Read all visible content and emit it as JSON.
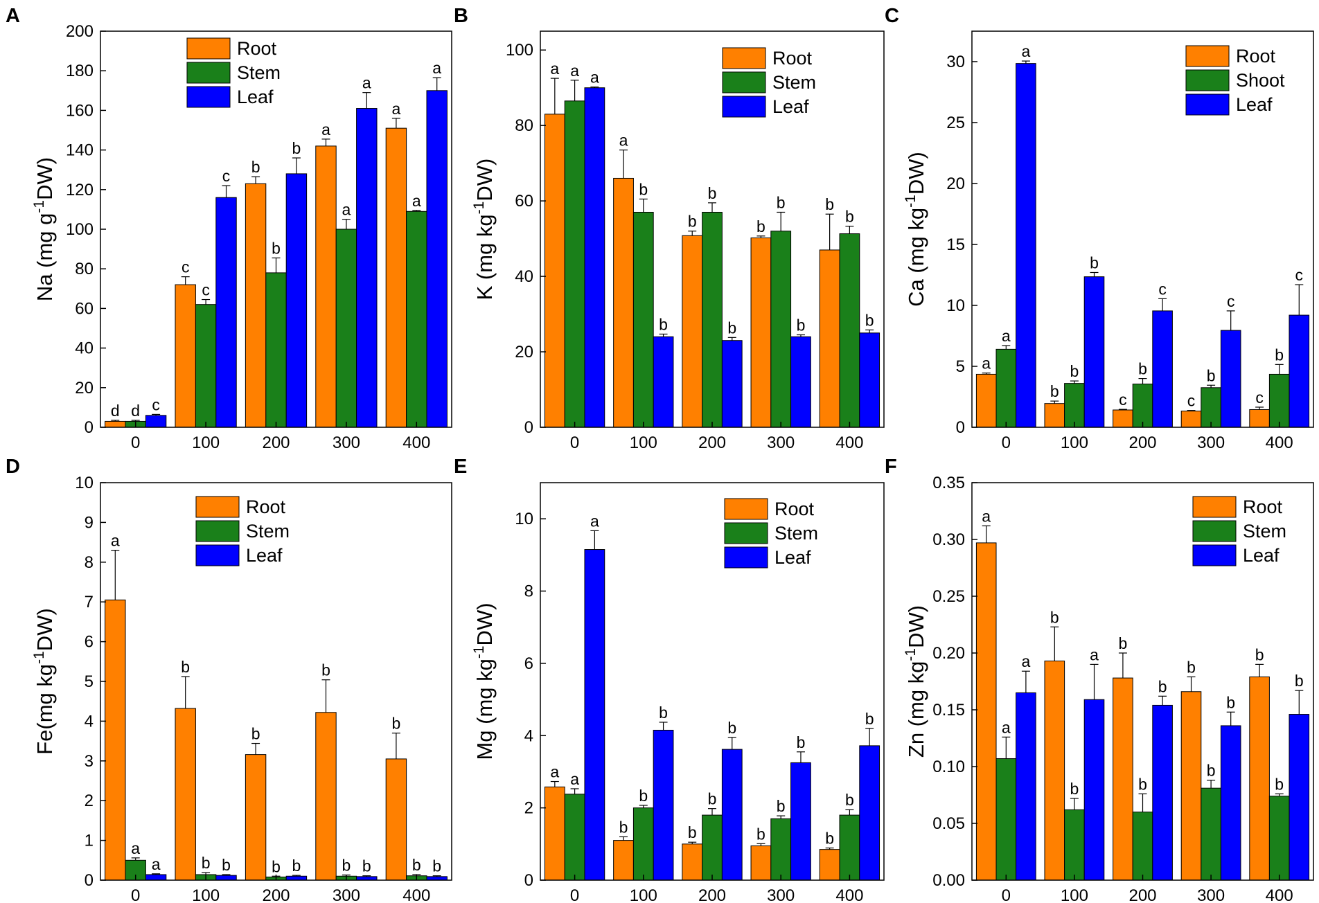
{
  "colors": {
    "Root": "#FF8000",
    "Stem": "#1A801A",
    "Shoot": "#1A801A",
    "Leaf": "#0000FF"
  },
  "chart_data": [
    {
      "type": "bar",
      "panel": "A",
      "categories": [
        "0",
        "100",
        "200",
        "300",
        "400"
      ],
      "ylabel": "Na (mg g",
      "ylabel_sup": "-1",
      "ylabel_tail": "DW)",
      "ylim": [
        0,
        200
      ],
      "yticks": [
        "0",
        "20",
        "40",
        "60",
        "80",
        "100",
        "120",
        "140",
        "160",
        "180",
        "200"
      ],
      "legend": [
        "Root",
        "Stem",
        "Leaf"
      ],
      "series": [
        {
          "name": "Root",
          "values": [
            3,
            72,
            123,
            142,
            151
          ],
          "errors": [
            0.5,
            4,
            3.5,
            3.5,
            5
          ],
          "letters": [
            "d",
            "c",
            "b",
            "a",
            "a"
          ]
        },
        {
          "name": "Stem",
          "values": [
            3,
            62,
            78,
            100,
            109
          ],
          "errors": [
            0.5,
            2.5,
            7.5,
            5,
            0.5
          ],
          "letters": [
            "d",
            "c",
            "b",
            "a",
            "a"
          ]
        },
        {
          "name": "Leaf",
          "values": [
            6,
            116,
            128,
            161,
            170
          ],
          "errors": [
            0.5,
            6,
            8,
            8,
            6.5
          ],
          "letters": [
            "c",
            "c",
            "b",
            "a",
            "a"
          ]
        }
      ]
    },
    {
      "type": "bar",
      "panel": "B",
      "categories": [
        "0",
        "100",
        "200",
        "300",
        "400"
      ],
      "ylabel": "K (mg kg",
      "ylabel_sup": "-1",
      "ylabel_tail": "DW)",
      "ylim": [
        0,
        105
      ],
      "yticks": [
        "0",
        "20",
        "40",
        "60",
        "80",
        "100"
      ],
      "legend": [
        "Root",
        "Stem",
        "Leaf"
      ],
      "series": [
        {
          "name": "Root",
          "values": [
            83,
            66,
            50.8,
            50.2,
            47
          ],
          "errors": [
            9.5,
            7.5,
            1.2,
            0.5,
            9.5
          ],
          "letters": [
            "a",
            "a",
            "b",
            "b",
            "b"
          ]
        },
        {
          "name": "Stem",
          "values": [
            86.5,
            57,
            57,
            52,
            51.3
          ],
          "errors": [
            5.5,
            3.5,
            2.5,
            5,
            2
          ],
          "letters": [
            "a",
            "b",
            "b",
            "b",
            "b"
          ]
        },
        {
          "name": "Leaf",
          "values": [
            90,
            24,
            23,
            24,
            25
          ],
          "errors": [
            0.2,
            0.7,
            0.8,
            0.5,
            0.8
          ],
          "letters": [
            "a",
            "b",
            "b",
            "b",
            "b"
          ]
        }
      ]
    },
    {
      "type": "bar",
      "panel": "C",
      "categories": [
        "0",
        "100",
        "200",
        "300",
        "400"
      ],
      "ylabel": "Ca (mg kg",
      "ylabel_sup": "-1",
      "ylabel_tail": "DW)",
      "ylim": [
        0,
        32.5
      ],
      "yticks": [
        "0",
        "5",
        "10",
        "15",
        "20",
        "25",
        "30"
      ],
      "legend": [
        "Root",
        "Shoot",
        "Leaf"
      ],
      "series": [
        {
          "name": "Root",
          "values": [
            4.35,
            1.95,
            1.42,
            1.33,
            1.45
          ],
          "errors": [
            0.1,
            0.2,
            0.05,
            0.05,
            0.2
          ],
          "letters": [
            "a",
            "b",
            "c",
            "c",
            "c"
          ]
        },
        {
          "name": "Shoot",
          "values": [
            6.4,
            3.6,
            3.55,
            3.25,
            4.35
          ],
          "errors": [
            0.3,
            0.2,
            0.45,
            0.2,
            0.8
          ],
          "letters": [
            "a",
            "b",
            "b",
            "b",
            "b"
          ]
        },
        {
          "name": "Leaf",
          "values": [
            29.85,
            12.35,
            9.55,
            7.95,
            9.2
          ],
          "errors": [
            0.2,
            0.35,
            1.0,
            1.6,
            2.5
          ],
          "letters": [
            "a",
            "b",
            "c",
            "c",
            "c"
          ]
        }
      ]
    },
    {
      "type": "bar",
      "panel": "D",
      "categories": [
        "0",
        "100",
        "200",
        "300",
        "400"
      ],
      "ylabel": "Fe(mg kg",
      "ylabel_sup": "-1",
      "ylabel_tail": "DW)",
      "ylim": [
        0,
        10
      ],
      "yticks": [
        "0",
        "1",
        "2",
        "3",
        "4",
        "5",
        "6",
        "7",
        "8",
        "9",
        "10"
      ],
      "legend": [
        "Root",
        "Stem",
        "Leaf"
      ],
      "series": [
        {
          "name": "Root",
          "values": [
            7.05,
            4.32,
            3.16,
            4.22,
            3.05
          ],
          "errors": [
            1.25,
            0.8,
            0.28,
            0.82,
            0.65
          ],
          "letters": [
            "a",
            "b",
            "b",
            "b",
            "b"
          ]
        },
        {
          "name": "Stem",
          "values": [
            0.5,
            0.14,
            0.08,
            0.1,
            0.11
          ],
          "errors": [
            0.06,
            0.05,
            0.02,
            0.03,
            0.03
          ],
          "letters": [
            "a",
            "b",
            "b",
            "b",
            "b"
          ]
        },
        {
          "name": "Leaf",
          "values": [
            0.14,
            0.12,
            0.1,
            0.09,
            0.09
          ],
          "errors": [
            0.02,
            0.02,
            0.02,
            0.02,
            0.02
          ],
          "letters": [
            "a",
            "b",
            "b",
            "b",
            "b"
          ]
        }
      ]
    },
    {
      "type": "bar",
      "panel": "E",
      "categories": [
        "0",
        "100",
        "200",
        "300",
        "400"
      ],
      "ylabel": "Mg (mg kg",
      "ylabel_sup": "-1",
      "ylabel_tail": "DW)",
      "ylim": [
        0,
        11
      ],
      "yticks": [
        "0",
        "2",
        "4",
        "6",
        "8",
        "10"
      ],
      "legend": [
        "Root",
        "Stem",
        "Leaf"
      ],
      "series": [
        {
          "name": "Root",
          "values": [
            2.58,
            1.1,
            1.0,
            0.95,
            0.85
          ],
          "errors": [
            0.15,
            0.1,
            0.05,
            0.06,
            0.04
          ],
          "letters": [
            "a",
            "b",
            "b",
            "b",
            "b"
          ]
        },
        {
          "name": "Stem",
          "values": [
            2.38,
            2.0,
            1.8,
            1.7,
            1.8
          ],
          "errors": [
            0.15,
            0.07,
            0.18,
            0.08,
            0.15
          ],
          "letters": [
            "a",
            "b",
            "b",
            "b",
            "b"
          ]
        },
        {
          "name": "Leaf",
          "values": [
            9.15,
            4.15,
            3.62,
            3.25,
            3.72
          ],
          "errors": [
            0.52,
            0.22,
            0.33,
            0.3,
            0.48
          ],
          "letters": [
            "a",
            "b",
            "b",
            "b",
            "b"
          ]
        }
      ]
    },
    {
      "type": "bar",
      "panel": "F",
      "categories": [
        "0",
        "100",
        "200",
        "300",
        "400"
      ],
      "ylabel": "Zn (mg kg",
      "ylabel_sup": "-1",
      "ylabel_tail": "DW)",
      "ylim": [
        0,
        0.35
      ],
      "yticks": [
        "0.00",
        "0.05",
        "0.10",
        "0.15",
        "0.20",
        "0.25",
        "0.30",
        "0.35"
      ],
      "legend": [
        "Root",
        "Stem",
        "Leaf"
      ],
      "series": [
        {
          "name": "Root",
          "values": [
            0.297,
            0.193,
            0.178,
            0.166,
            0.179
          ],
          "errors": [
            0.015,
            0.03,
            0.022,
            0.013,
            0.011
          ],
          "letters": [
            "a",
            "b",
            "b",
            "b",
            "b"
          ]
        },
        {
          "name": "Stem",
          "values": [
            0.107,
            0.062,
            0.06,
            0.081,
            0.074
          ],
          "errors": [
            0.019,
            0.01,
            0.016,
            0.007,
            0.002
          ],
          "letters": [
            "a",
            "b",
            "b",
            "b",
            "b"
          ]
        },
        {
          "name": "Leaf",
          "values": [
            0.165,
            0.159,
            0.154,
            0.136,
            0.146
          ],
          "errors": [
            0.019,
            0.031,
            0.008,
            0.012,
            0.021
          ],
          "letters": [
            "a",
            "a",
            "b",
            "b",
            "b"
          ]
        }
      ]
    }
  ]
}
